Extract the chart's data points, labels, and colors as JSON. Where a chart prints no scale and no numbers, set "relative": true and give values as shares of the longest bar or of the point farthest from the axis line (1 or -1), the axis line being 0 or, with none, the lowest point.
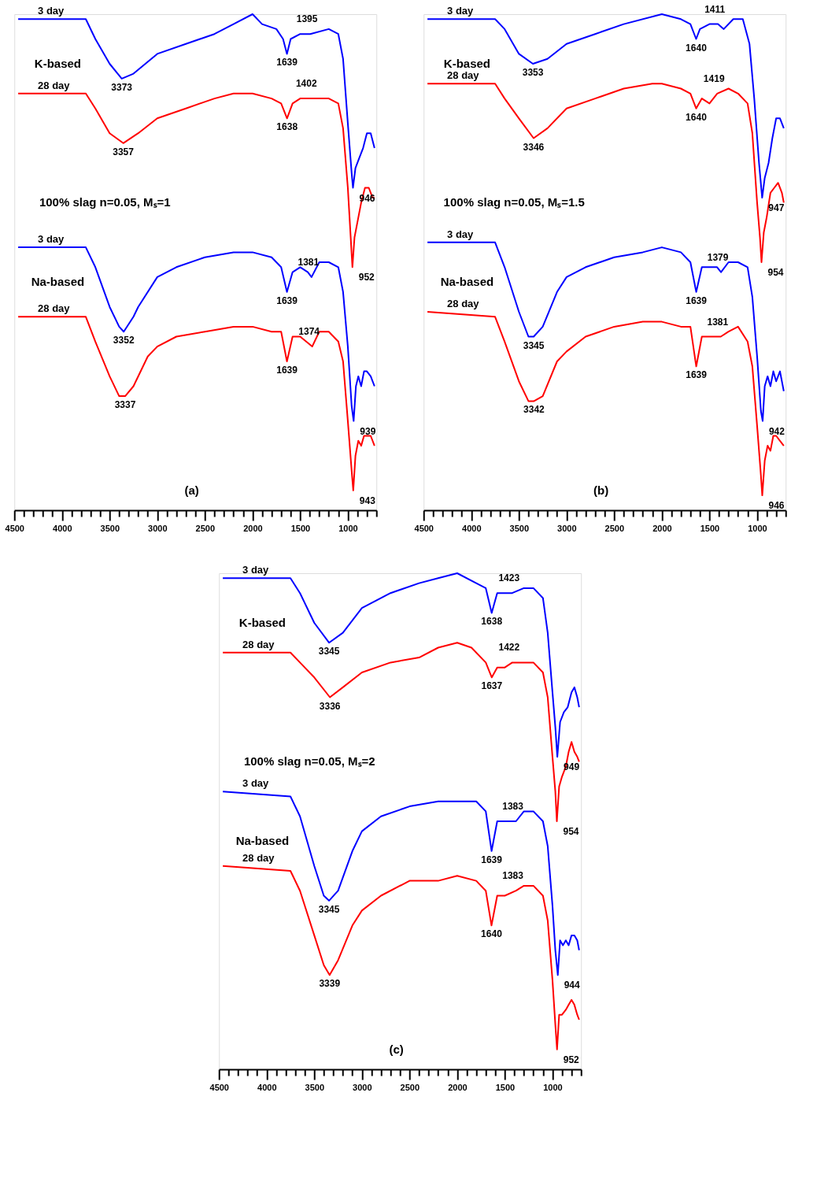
{
  "chart_data": [
    {
      "type": "line",
      "relative": true,
      "xlim": [
        4500,
        700
      ],
      "xticks": [
        4500,
        {
          "value": 4400,
          "label": null
        },
        {
          "value": 4300,
          "label": null
        },
        {
          "value": 4200,
          "label": null
        },
        {
          "value": 4100,
          "label": null
        },
        4000,
        {
          "value": 3900,
          "label": null
        },
        {
          "value": 3800,
          "label": null
        },
        {
          "value": 3700,
          "label": null
        },
        {
          "value": 3600,
          "label": null
        },
        3500,
        {
          "value": 3400,
          "label": null
        },
        {
          "value": 3300,
          "label": null
        },
        {
          "value": 3200,
          "label": null
        },
        {
          "value": 3100,
          "label": null
        },
        3000,
        {
          "value": 2900,
          "label": null
        },
        {
          "value": 2800,
          "label": null
        },
        {
          "value": 2700,
          "label": null
        },
        {
          "value": 2600,
          "label": null
        },
        2500,
        {
          "value": 2400,
          "label": null
        },
        {
          "value": 2300,
          "label": null
        },
        {
          "value": 2200,
          "label": null
        },
        {
          "value": 2100,
          "label": null
        },
        2000,
        {
          "value": 1900,
          "label": null
        },
        {
          "value": 1800,
          "label": null
        },
        {
          "value": 1700,
          "label": null
        },
        {
          "value": 1600,
          "label": null
        },
        1500,
        {
          "value": 1400,
          "label": null
        },
        {
          "value": 1300,
          "label": null
        },
        {
          "value": 1200,
          "label": null
        },
        {
          "value": 1100,
          "label": null
        },
        1000,
        {
          "value": 900,
          "label": null
        },
        {
          "value": 800,
          "label": null
        },
        {
          "value": 700,
          "label": null
        }
      ],
      "series": [
        {
          "name": "3 day",
          "color": "#0000ff",
          "x": [
            4460,
            4000,
            3750,
            3650,
            3500,
            3373,
            3250,
            3000,
            2700,
            2400,
            2200,
            2000,
            1900,
            1750,
            1680,
            1639,
            1600,
            1500,
            1395,
            1200,
            1100,
            1050,
            1000,
            960,
            946,
            920,
            880,
            840,
            800,
            760,
            720
          ],
          "values": [
            0.99,
            0.99,
            0.99,
            0.95,
            0.9,
            0.87,
            0.88,
            0.92,
            0.94,
            0.96,
            0.98,
            1.0,
            0.98,
            0.97,
            0.95,
            0.92,
            0.95,
            0.96,
            0.96,
            0.97,
            0.96,
            0.91,
            0.78,
            0.68,
            0.65,
            0.69,
            0.71,
            0.73,
            0.76,
            0.76,
            0.73
          ]
        },
        {
          "name": "28 day",
          "color": "#ff0000",
          "x": [
            4460,
            3750,
            3650,
            3500,
            3357,
            3200,
            3000,
            2700,
            2400,
            2200,
            2000,
            1800,
            1700,
            1638,
            1580,
            1500,
            1402,
            1200,
            1100,
            1050,
            1000,
            970,
            952,
            930,
            900,
            860,
            820,
            780,
            740,
            720
          ],
          "values": [
            0.84,
            0.84,
            0.81,
            0.76,
            0.74,
            0.76,
            0.79,
            0.81,
            0.83,
            0.84,
            0.84,
            0.83,
            0.82,
            0.79,
            0.82,
            0.83,
            0.83,
            0.83,
            0.82,
            0.77,
            0.65,
            0.55,
            0.49,
            0.55,
            0.58,
            0.62,
            0.65,
            0.65,
            0.63,
            0.63
          ]
        },
        {
          "name": "3 day",
          "color": "#0000ff",
          "x": [
            4460,
            3750,
            3650,
            3500,
            3400,
            3352,
            3250,
            3200,
            3000,
            2800,
            2500,
            2200,
            2000,
            1800,
            1700,
            1639,
            1580,
            1500,
            1420,
            1381,
            1300,
            1200,
            1100,
            1050,
            1000,
            960,
            939,
            915,
            890,
            860,
            830,
            800,
            760,
            720
          ],
          "values": [
            0.53,
            0.53,
            0.49,
            0.41,
            0.37,
            0.36,
            0.39,
            0.41,
            0.47,
            0.49,
            0.51,
            0.52,
            0.52,
            0.51,
            0.49,
            0.44,
            0.48,
            0.49,
            0.48,
            0.47,
            0.5,
            0.5,
            0.49,
            0.44,
            0.33,
            0.21,
            0.18,
            0.25,
            0.27,
            0.25,
            0.28,
            0.28,
            0.27,
            0.25
          ]
        },
        {
          "name": "28 day",
          "color": "#ff0000",
          "x": [
            4460,
            3750,
            3650,
            3500,
            3400,
            3337,
            3250,
            3100,
            3000,
            2800,
            2500,
            2200,
            2000,
            1800,
            1700,
            1639,
            1580,
            1500,
            1374,
            1300,
            1200,
            1100,
            1050,
            1000,
            960,
            943,
            920,
            890,
            860,
            830,
            800,
            760,
            720
          ],
          "values": [
            0.39,
            0.39,
            0.34,
            0.27,
            0.23,
            0.23,
            0.25,
            0.31,
            0.33,
            0.35,
            0.36,
            0.37,
            0.37,
            0.36,
            0.36,
            0.3,
            0.35,
            0.35,
            0.33,
            0.36,
            0.36,
            0.34,
            0.3,
            0.18,
            0.08,
            0.04,
            0.11,
            0.14,
            0.13,
            0.15,
            0.15,
            0.15,
            0.13
          ]
        }
      ],
      "annotations": [
        "K-based",
        "100% slag n=0.05, Mₛ=1",
        "Na-based",
        "(a)",
        {
          "text": "3373",
          "x": 3373,
          "y": 0.87
        },
        {
          "text": "1639",
          "x": 1639,
          "y": 0.92
        },
        {
          "text": "1395",
          "x": 1395,
          "y": 0.96
        },
        {
          "text": "946",
          "x": 946,
          "y": 0.65
        },
        {
          "text": "3357",
          "x": 3357,
          "y": 0.74
        },
        {
          "text": "1638",
          "x": 1638,
          "y": 0.79
        },
        {
          "text": "1402",
          "x": 1402,
          "y": 0.83
        },
        {
          "text": "952",
          "x": 952,
          "y": 0.49
        },
        {
          "text": "3352",
          "x": 3352,
          "y": 0.36
        },
        {
          "text": "1639",
          "x": 1639,
          "y": 0.44
        },
        {
          "text": "1381",
          "x": 1381,
          "y": 0.47
        },
        {
          "text": "939",
          "x": 939,
          "y": 0.18
        },
        {
          "text": "3337",
          "x": 3337,
          "y": 0.23
        },
        {
          "text": "1639",
          "x": 1639,
          "y": 0.3
        },
        {
          "text": "1374",
          "x": 1374,
          "y": 0.33
        },
        {
          "text": "943",
          "x": 943,
          "y": 0.04
        }
      ]
    },
    {
      "type": "line",
      "relative": true,
      "xlim": [
        4500,
        700
      ],
      "xticks": [
        4500,
        {
          "value": 4400,
          "label": null
        },
        {
          "value": 4300,
          "label": null
        },
        {
          "value": 4200,
          "label": null
        },
        {
          "value": 4100,
          "label": null
        },
        4000,
        {
          "value": 3900,
          "label": null
        },
        {
          "value": 3800,
          "label": null
        },
        {
          "value": 3700,
          "label": null
        },
        {
          "value": 3600,
          "label": null
        },
        3500,
        {
          "value": 3400,
          "label": null
        },
        {
          "value": 3300,
          "label": null
        },
        {
          "value": 3200,
          "label": null
        },
        {
          "value": 3100,
          "label": null
        },
        3000,
        {
          "value": 2900,
          "label": null
        },
        {
          "value": 2800,
          "label": null
        },
        {
          "value": 2700,
          "label": null
        },
        {
          "value": 2600,
          "label": null
        },
        2500,
        {
          "value": 2400,
          "label": null
        },
        {
          "value": 2300,
          "label": null
        },
        {
          "value": 2200,
          "label": null
        },
        {
          "value": 2100,
          "label": null
        },
        2000,
        {
          "value": 1900,
          "label": null
        },
        {
          "value": 1800,
          "label": null
        },
        {
          "value": 1700,
          "label": null
        },
        {
          "value": 1600,
          "label": null
        },
        1500,
        {
          "value": 1400,
          "label": null
        },
        {
          "value": 1300,
          "label": null
        },
        {
          "value": 1200,
          "label": null
        },
        {
          "value": 1100,
          "label": null
        },
        1000,
        {
          "value": 900,
          "label": null
        },
        {
          "value": 800,
          "label": null
        },
        {
          "value": 700,
          "label": null
        }
      ],
      "series": [
        {
          "name": "3 day",
          "color": "#0000ff",
          "x": [
            4460,
            3750,
            3650,
            3500,
            3353,
            3200,
            3000,
            2700,
            2400,
            2000,
            1800,
            1700,
            1640,
            1600,
            1500,
            1411,
            1350,
            1250,
            1150,
            1080,
            1030,
            980,
            947,
            920,
            880,
            840,
            800,
            760,
            720
          ],
          "values": [
            0.99,
            0.99,
            0.97,
            0.92,
            0.9,
            0.91,
            0.94,
            0.96,
            0.98,
            1.0,
            0.99,
            0.98,
            0.95,
            0.97,
            0.98,
            0.98,
            0.97,
            0.99,
            0.99,
            0.94,
            0.83,
            0.7,
            0.63,
            0.67,
            0.7,
            0.75,
            0.79,
            0.79,
            0.77
          ]
        },
        {
          "name": "28 day",
          "color": "#ff0000",
          "x": [
            4460,
            3750,
            3650,
            3500,
            3346,
            3200,
            3000,
            2700,
            2400,
            2100,
            2000,
            1800,
            1700,
            1640,
            1580,
            1500,
            1419,
            1300,
            1200,
            1100,
            1050,
            1000,
            970,
            954,
            930,
            900,
            860,
            820,
            780,
            740,
            720
          ],
          "values": [
            0.86,
            0.86,
            0.83,
            0.79,
            0.75,
            0.77,
            0.81,
            0.83,
            0.85,
            0.86,
            0.86,
            0.85,
            0.84,
            0.81,
            0.83,
            0.82,
            0.84,
            0.85,
            0.84,
            0.82,
            0.76,
            0.62,
            0.55,
            0.5,
            0.56,
            0.59,
            0.64,
            0.65,
            0.66,
            0.64,
            0.62
          ]
        },
        {
          "name": "3 day",
          "color": "#0000ff",
          "x": [
            4460,
            3750,
            3650,
            3500,
            3400,
            3345,
            3250,
            3100,
            3000,
            2800,
            2500,
            2200,
            2000,
            1800,
            1700,
            1639,
            1580,
            1500,
            1420,
            1379,
            1300,
            1200,
            1100,
            1050,
            1000,
            960,
            942,
            920,
            890,
            860,
            830,
            800,
            760,
            720
          ],
          "values": [
            0.54,
            0.54,
            0.49,
            0.4,
            0.35,
            0.35,
            0.37,
            0.44,
            0.47,
            0.49,
            0.51,
            0.52,
            0.53,
            0.52,
            0.5,
            0.44,
            0.49,
            0.49,
            0.49,
            0.48,
            0.5,
            0.5,
            0.49,
            0.43,
            0.31,
            0.2,
            0.18,
            0.25,
            0.27,
            0.25,
            0.28,
            0.26,
            0.28,
            0.24
          ]
        },
        {
          "name": "28 day",
          "color": "#ff0000",
          "x": [
            4460,
            3750,
            3650,
            3500,
            3400,
            3342,
            3250,
            3100,
            3000,
            2800,
            2500,
            2200,
            2000,
            1800,
            1700,
            1639,
            1580,
            1500,
            1381,
            1300,
            1200,
            1100,
            1050,
            1000,
            960,
            946,
            920,
            890,
            860,
            830,
            800,
            760,
            720
          ],
          "values": [
            0.4,
            0.39,
            0.34,
            0.26,
            0.22,
            0.22,
            0.23,
            0.3,
            0.32,
            0.35,
            0.37,
            0.38,
            0.38,
            0.37,
            0.37,
            0.29,
            0.35,
            0.35,
            0.35,
            0.36,
            0.37,
            0.34,
            0.29,
            0.17,
            0.07,
            0.03,
            0.1,
            0.13,
            0.12,
            0.15,
            0.15,
            0.14,
            0.13
          ]
        }
      ],
      "annotations": [
        "K-based",
        "100% slag n=0.05, Mₛ=1.5",
        "Na-based",
        "(b)",
        {
          "text": "3353",
          "x": 3353,
          "y": 0.9
        },
        {
          "text": "1640",
          "x": 1640,
          "y": 0.95
        },
        {
          "text": "1411",
          "x": 1411,
          "y": 0.98
        },
        {
          "text": "947",
          "x": 947,
          "y": 0.63
        },
        {
          "text": "3346",
          "x": 3346,
          "y": 0.75
        },
        {
          "text": "1640",
          "x": 1640,
          "y": 0.81
        },
        {
          "text": "1419",
          "x": 1419,
          "y": 0.84
        },
        {
          "text": "954",
          "x": 954,
          "y": 0.5
        },
        {
          "text": "3345",
          "x": 3345,
          "y": 0.35
        },
        {
          "text": "1639",
          "x": 1639,
          "y": 0.44
        },
        {
          "text": "1379",
          "x": 1379,
          "y": 0.48
        },
        {
          "text": "942",
          "x": 942,
          "y": 0.18
        },
        {
          "text": "3342",
          "x": 3342,
          "y": 0.22
        },
        {
          "text": "1639",
          "x": 1639,
          "y": 0.29
        },
        {
          "text": "1381",
          "x": 1381,
          "y": 0.35
        },
        {
          "text": "946",
          "x": 946,
          "y": 0.03
        }
      ]
    },
    {
      "type": "line",
      "relative": true,
      "xlim": [
        4500,
        700
      ],
      "xticks": [
        4500,
        {
          "value": 4400,
          "label": null
        },
        {
          "value": 4300,
          "label": null
        },
        {
          "value": 4200,
          "label": null
        },
        {
          "value": 4100,
          "label": null
        },
        4000,
        {
          "value": 3900,
          "label": null
        },
        {
          "value": 3800,
          "label": null
        },
        {
          "value": 3700,
          "label": null
        },
        {
          "value": 3600,
          "label": null
        },
        3500,
        {
          "value": 3400,
          "label": null
        },
        {
          "value": 3300,
          "label": null
        },
        {
          "value": 3200,
          "label": null
        },
        {
          "value": 3100,
          "label": null
        },
        3000,
        {
          "value": 2900,
          "label": null
        },
        {
          "value": 2800,
          "label": null
        },
        {
          "value": 2700,
          "label": null
        },
        {
          "value": 2600,
          "label": null
        },
        2500,
        {
          "value": 2400,
          "label": null
        },
        {
          "value": 2300,
          "label": null
        },
        {
          "value": 2200,
          "label": null
        },
        {
          "value": 2100,
          "label": null
        },
        2000,
        {
          "value": 1900,
          "label": null
        },
        {
          "value": 1800,
          "label": null
        },
        {
          "value": 1700,
          "label": null
        },
        {
          "value": 1600,
          "label": null
        },
        1500,
        {
          "value": 1400,
          "label": null
        },
        {
          "value": 1300,
          "label": null
        },
        {
          "value": 1200,
          "label": null
        },
        {
          "value": 1100,
          "label": null
        },
        1000,
        {
          "value": 900,
          "label": null
        },
        {
          "value": 800,
          "label": null
        },
        {
          "value": 700,
          "label": null
        }
      ],
      "series": [
        {
          "name": "3 day",
          "color": "#0000ff",
          "x": [
            4460,
            3750,
            3650,
            3500,
            3345,
            3200,
            3000,
            2700,
            2400,
            2200,
            2000,
            1800,
            1700,
            1638,
            1580,
            1500,
            1423,
            1300,
            1200,
            1100,
            1050,
            1000,
            970,
            949,
            920,
            880,
            840,
            800,
            770,
            740,
            720
          ],
          "values": [
            0.99,
            0.99,
            0.96,
            0.9,
            0.86,
            0.88,
            0.93,
            0.96,
            0.98,
            0.99,
            1.0,
            0.98,
            0.97,
            0.92,
            0.96,
            0.96,
            0.96,
            0.97,
            0.97,
            0.95,
            0.88,
            0.76,
            0.69,
            0.63,
            0.7,
            0.72,
            0.73,
            0.76,
            0.77,
            0.75,
            0.73
          ]
        },
        {
          "name": "28 day",
          "color": "#ff0000",
          "x": [
            4460,
            3750,
            3650,
            3500,
            3336,
            3200,
            3000,
            2700,
            2400,
            2200,
            2000,
            1850,
            1700,
            1637,
            1580,
            1500,
            1422,
            1300,
            1200,
            1100,
            1050,
            1000,
            970,
            954,
            930,
            900,
            860,
            830,
            800,
            770,
            740,
            720
          ],
          "values": [
            0.84,
            0.84,
            0.82,
            0.79,
            0.75,
            0.77,
            0.8,
            0.82,
            0.83,
            0.85,
            0.86,
            0.85,
            0.82,
            0.79,
            0.81,
            0.81,
            0.82,
            0.82,
            0.82,
            0.8,
            0.75,
            0.63,
            0.56,
            0.5,
            0.57,
            0.59,
            0.61,
            0.64,
            0.66,
            0.64,
            0.63,
            0.62
          ]
        },
        {
          "name": "3 day",
          "color": "#0000ff",
          "x": [
            4460,
            3750,
            3650,
            3500,
            3400,
            3345,
            3250,
            3100,
            3000,
            2800,
            2500,
            2200,
            2000,
            1800,
            1700,
            1639,
            1580,
            1500,
            1383,
            1300,
            1200,
            1100,
            1050,
            1000,
            970,
            944,
            920,
            890,
            860,
            830,
            800,
            770,
            740,
            720
          ],
          "values": [
            0.56,
            0.55,
            0.51,
            0.41,
            0.35,
            0.34,
            0.36,
            0.44,
            0.48,
            0.51,
            0.53,
            0.54,
            0.54,
            0.54,
            0.52,
            0.44,
            0.5,
            0.5,
            0.5,
            0.52,
            0.52,
            0.5,
            0.45,
            0.33,
            0.24,
            0.19,
            0.26,
            0.25,
            0.26,
            0.25,
            0.27,
            0.27,
            0.26,
            0.24
          ]
        },
        {
          "name": "28 day",
          "color": "#ff0000",
          "x": [
            4460,
            3750,
            3650,
            3500,
            3400,
            3339,
            3250,
            3100,
            3000,
            2800,
            2500,
            2200,
            2000,
            1800,
            1700,
            1640,
            1580,
            1500,
            1383,
            1300,
            1200,
            1100,
            1050,
            1000,
            970,
            952,
            930,
            900,
            860,
            830,
            800,
            770,
            740,
            720
          ],
          "values": [
            0.41,
            0.4,
            0.36,
            0.27,
            0.21,
            0.19,
            0.22,
            0.29,
            0.32,
            0.35,
            0.38,
            0.38,
            0.39,
            0.38,
            0.36,
            0.29,
            0.35,
            0.35,
            0.36,
            0.37,
            0.37,
            0.35,
            0.3,
            0.18,
            0.09,
            0.04,
            0.11,
            0.11,
            0.12,
            0.13,
            0.14,
            0.13,
            0.11,
            0.1
          ]
        }
      ],
      "annotations": [
        "K-based",
        "100% slag n=0.05, Mₛ=2",
        "Na-based",
        "(c)",
        {
          "text": "3345",
          "x": 3345,
          "y": 0.86
        },
        {
          "text": "1638",
          "x": 1638,
          "y": 0.92
        },
        {
          "text": "1423",
          "x": 1423,
          "y": 0.96
        },
        {
          "text": "949",
          "x": 949,
          "y": 0.63
        },
        {
          "text": "3336",
          "x": 3336,
          "y": 0.75
        },
        {
          "text": "1637",
          "x": 1637,
          "y": 0.79
        },
        {
          "text": "1422",
          "x": 1422,
          "y": 0.82
        },
        {
          "text": "954",
          "x": 954,
          "y": 0.5
        },
        {
          "text": "3345",
          "x": 3345,
          "y": 0.34
        },
        {
          "text": "1639",
          "x": 1639,
          "y": 0.44
        },
        {
          "text": "1383",
          "x": 1383,
          "y": 0.5
        },
        {
          "text": "944",
          "x": 944,
          "y": 0.19
        },
        {
          "text": "3339",
          "x": 3339,
          "y": 0.19
        },
        {
          "text": "1640",
          "x": 1640,
          "y": 0.29
        },
        {
          "text": "1383",
          "x": 1383,
          "y": 0.36
        },
        {
          "text": "952",
          "x": 952,
          "y": 0.04
        }
      ]
    }
  ]
}
